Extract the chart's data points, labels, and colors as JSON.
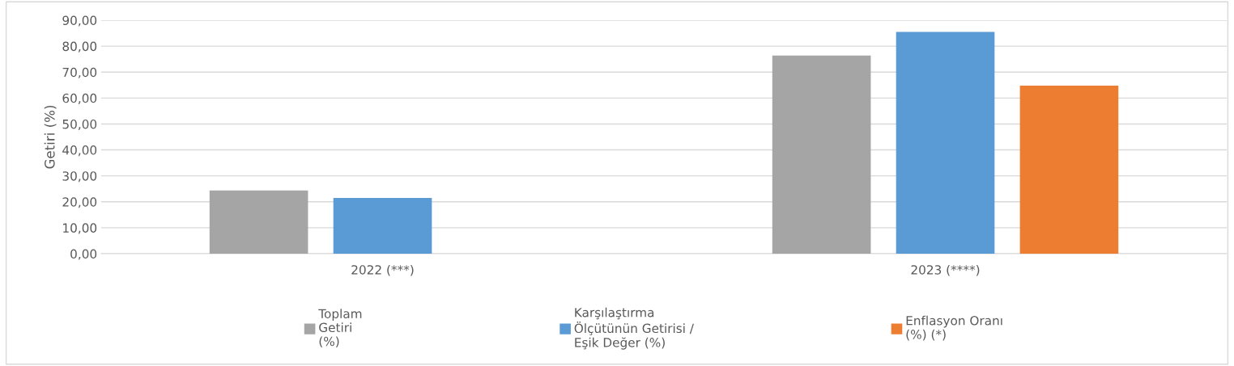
{
  "chart_data": {
    "type": "bar",
    "ylabel": "Getiri (%)",
    "categories": [
      "2022 (***)",
      "2023 (****)"
    ],
    "series": [
      {
        "name": "Toplam\nGetiri\n(%)",
        "color": "#a5a5a5",
        "values": [
          24.4,
          76.4
        ]
      },
      {
        "name": "Karşılaştırma\nÖlçütünün Getirisi /\nEşik Değer (%)",
        "color": "#5b9bd5",
        "values": [
          21.5,
          85.5
        ]
      },
      {
        "name": "Enflasyon Oranı\n(%) (*)",
        "color": "#ed7d31",
        "values": [
          null,
          64.8
        ]
      }
    ],
    "ylim": [
      0,
      90
    ],
    "yticks": [
      {
        "value": 0,
        "label": "0,00"
      },
      {
        "value": 10,
        "label": "10,00"
      },
      {
        "value": 20,
        "label": "20,00"
      },
      {
        "value": 30,
        "label": "30,00"
      },
      {
        "value": 40,
        "label": "40,00"
      },
      {
        "value": 50,
        "label": "50,00"
      },
      {
        "value": 60,
        "label": "60,00"
      },
      {
        "value": 70,
        "label": "70,00"
      },
      {
        "value": 80,
        "label": "80,00"
      },
      {
        "value": 90,
        "label": "90,00"
      }
    ],
    "grid": "y",
    "legend": "bottom"
  }
}
